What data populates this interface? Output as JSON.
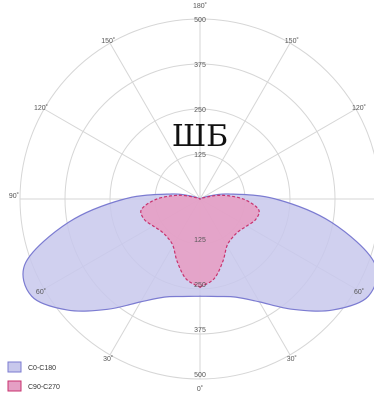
{
  "chart_data": {
    "type": "polar-area",
    "title": "ШБ",
    "radial_range": [
      0,
      500
    ],
    "radial_ticks": [
      125,
      250,
      375,
      500
    ],
    "radial_tick_labels": [
      "125",
      "250",
      "375",
      "500"
    ],
    "angle_labels": [
      {
        "deg": 0,
        "text": "0˚"
      },
      {
        "deg": 180,
        "text": "180˚"
      },
      {
        "deg": 30,
        "text": "30˚"
      },
      {
        "deg": -30,
        "text": "30˚"
      },
      {
        "deg": 60,
        "text": "60˚"
      },
      {
        "deg": -60,
        "text": "60˚"
      },
      {
        "deg": 90,
        "text": "90˚"
      },
      {
        "deg": 120,
        "text": "120˚"
      },
      {
        "deg": -120,
        "text": "120˚"
      },
      {
        "deg": 150,
        "text": "150˚"
      },
      {
        "deg": -150,
        "text": "150˚"
      }
    ],
    "angles": [
      0,
      10,
      20,
      30,
      40,
      50,
      60,
      70,
      80,
      90,
      100,
      110,
      120
    ],
    "series": [
      {
        "name": "C0-C180",
        "color": "#7b7bd1",
        "fill": "#c8c8ec",
        "line_style": "solid",
        "symmetric": true,
        "values": [
          270,
          275,
          290,
          330,
          400,
          480,
          540,
          515,
          370,
          210,
          80,
          20,
          0
        ]
      },
      {
        "name": "C90-C270",
        "color": "#c8326e",
        "fill": "#e59fc4",
        "line_style": "dashed",
        "symmetric": true,
        "values": [
          245,
          225,
          185,
          150,
          140,
          140,
          150,
          165,
          165,
          120,
          60,
          10,
          0
        ]
      }
    ],
    "grid": true,
    "legend_position": "bottom-left"
  }
}
